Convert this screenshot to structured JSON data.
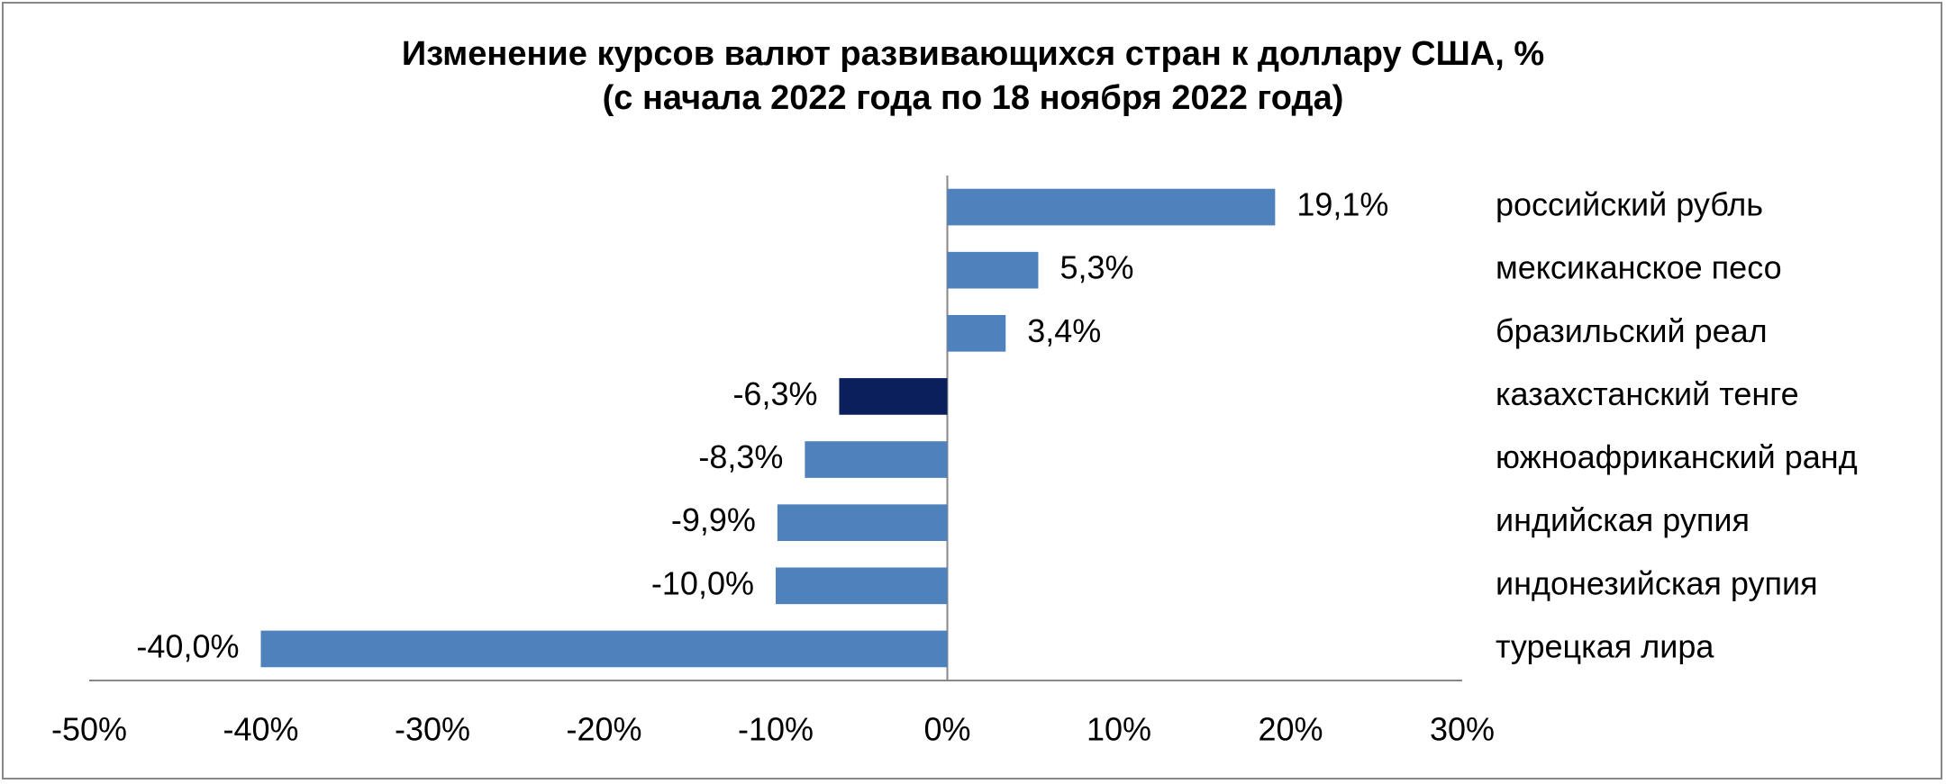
{
  "chart_data": {
    "type": "bar",
    "orientation": "horizontal",
    "title": [
      "Изменение курсов валют развивающихся стран к доллару США, %",
      "(с начала 2022 года по 18 ноября 2022 года)"
    ],
    "categories": [
      "российский рубль",
      "мексиканское песо",
      "бразильский реал",
      "казахстанский тенге",
      "южноафриканский ранд",
      "индийская рупия",
      "индонезийская рупия",
      "турецкая лира"
    ],
    "values": [
      19.1,
      5.3,
      3.4,
      -6.3,
      -8.3,
      -9.9,
      -10.0,
      -40.0
    ],
    "value_labels": [
      "19,1%",
      "5,3%",
      "3,4%",
      "-6,3%",
      "-8,3%",
      "-9,9%",
      "-10,0%",
      "-40,0%"
    ],
    "colors": [
      "#4f81bd",
      "#4f81bd",
      "#4f81bd",
      "#0a1f5c",
      "#4f81bd",
      "#4f81bd",
      "#4f81bd",
      "#4f81bd"
    ],
    "xlim": [
      -50,
      30
    ],
    "xticks": [
      {
        "value": -50,
        "label": "-50%"
      },
      {
        "value": -40,
        "label": "-40%"
      },
      {
        "value": -30,
        "label": "-30%"
      },
      {
        "value": -20,
        "label": "-20%"
      },
      {
        "value": -10,
        "label": "-10%"
      },
      {
        "value": 0,
        "label": "0%"
      },
      {
        "value": 10,
        "label": "10%"
      },
      {
        "value": 20,
        "label": "20%"
      },
      {
        "value": 30,
        "label": "30%"
      }
    ],
    "grid": false
  }
}
